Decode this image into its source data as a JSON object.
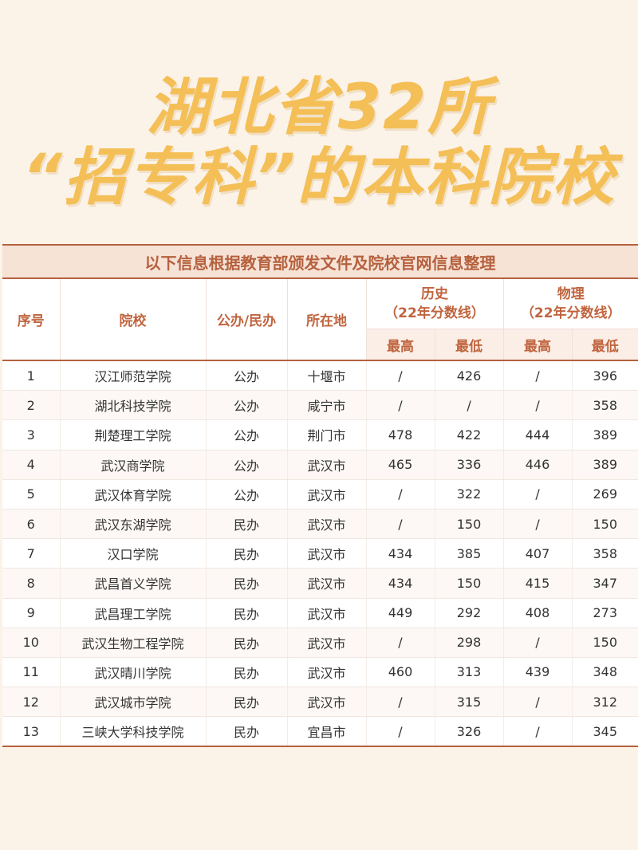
{
  "title": {
    "line1": "湖北省32所",
    "line2": "“招专科”的本科院校"
  },
  "subtitle": "以下信息根据教育部颁发文件及院校官网信息整理",
  "headers": {
    "index": "序号",
    "school": "院校",
    "type": "公办/民办",
    "location": "所在地",
    "history": "历史",
    "history_sub": "（22年分数线）",
    "physics": "物理",
    "physics_sub": "（22年分数线）",
    "high": "最高",
    "low": "最低"
  },
  "rows": [
    {
      "idx": "1",
      "school": "汉江师范学院",
      "type": "公办",
      "loc": "十堰市",
      "hh": "/",
      "hl": "426",
      "ph": "/",
      "pl": "396"
    },
    {
      "idx": "2",
      "school": "湖北科技学院",
      "type": "公办",
      "loc": "咸宁市",
      "hh": "/",
      "hl": "/",
      "ph": "/",
      "pl": "358"
    },
    {
      "idx": "3",
      "school": "荆楚理工学院",
      "type": "公办",
      "loc": "荆门市",
      "hh": "478",
      "hl": "422",
      "ph": "444",
      "pl": "389"
    },
    {
      "idx": "4",
      "school": "武汉商学院",
      "type": "公办",
      "loc": "武汉市",
      "hh": "465",
      "hl": "336",
      "ph": "446",
      "pl": "389"
    },
    {
      "idx": "5",
      "school": "武汉体育学院",
      "type": "公办",
      "loc": "武汉市",
      "hh": "/",
      "hl": "322",
      "ph": "/",
      "pl": "269"
    },
    {
      "idx": "6",
      "school": "武汉东湖学院",
      "type": "民办",
      "loc": "武汉市",
      "hh": "/",
      "hl": "150",
      "ph": "/",
      "pl": "150"
    },
    {
      "idx": "7",
      "school": "汉口学院",
      "type": "民办",
      "loc": "武汉市",
      "hh": "434",
      "hl": "385",
      "ph": "407",
      "pl": "358"
    },
    {
      "idx": "8",
      "school": "武昌首义学院",
      "type": "民办",
      "loc": "武汉市",
      "hh": "434",
      "hl": "150",
      "ph": "415",
      "pl": "347"
    },
    {
      "idx": "9",
      "school": "武昌理工学院",
      "type": "民办",
      "loc": "武汉市",
      "hh": "449",
      "hl": "292",
      "ph": "408",
      "pl": "273"
    },
    {
      "idx": "10",
      "school": "武汉生物工程学院",
      "type": "民办",
      "loc": "武汉市",
      "hh": "/",
      "hl": "298",
      "ph": "/",
      "pl": "150"
    },
    {
      "idx": "11",
      "school": "武汉晴川学院",
      "type": "民办",
      "loc": "武汉市",
      "hh": "460",
      "hl": "313",
      "ph": "439",
      "pl": "348"
    },
    {
      "idx": "12",
      "school": "武汉城市学院",
      "type": "民办",
      "loc": "武汉市",
      "hh": "/",
      "hl": "315",
      "ph": "/",
      "pl": "312"
    },
    {
      "idx": "13",
      "school": "三峡大学科技学院",
      "type": "民办",
      "loc": "宜昌市",
      "hh": "/",
      "hl": "326",
      "ph": "/",
      "pl": "345"
    }
  ]
}
